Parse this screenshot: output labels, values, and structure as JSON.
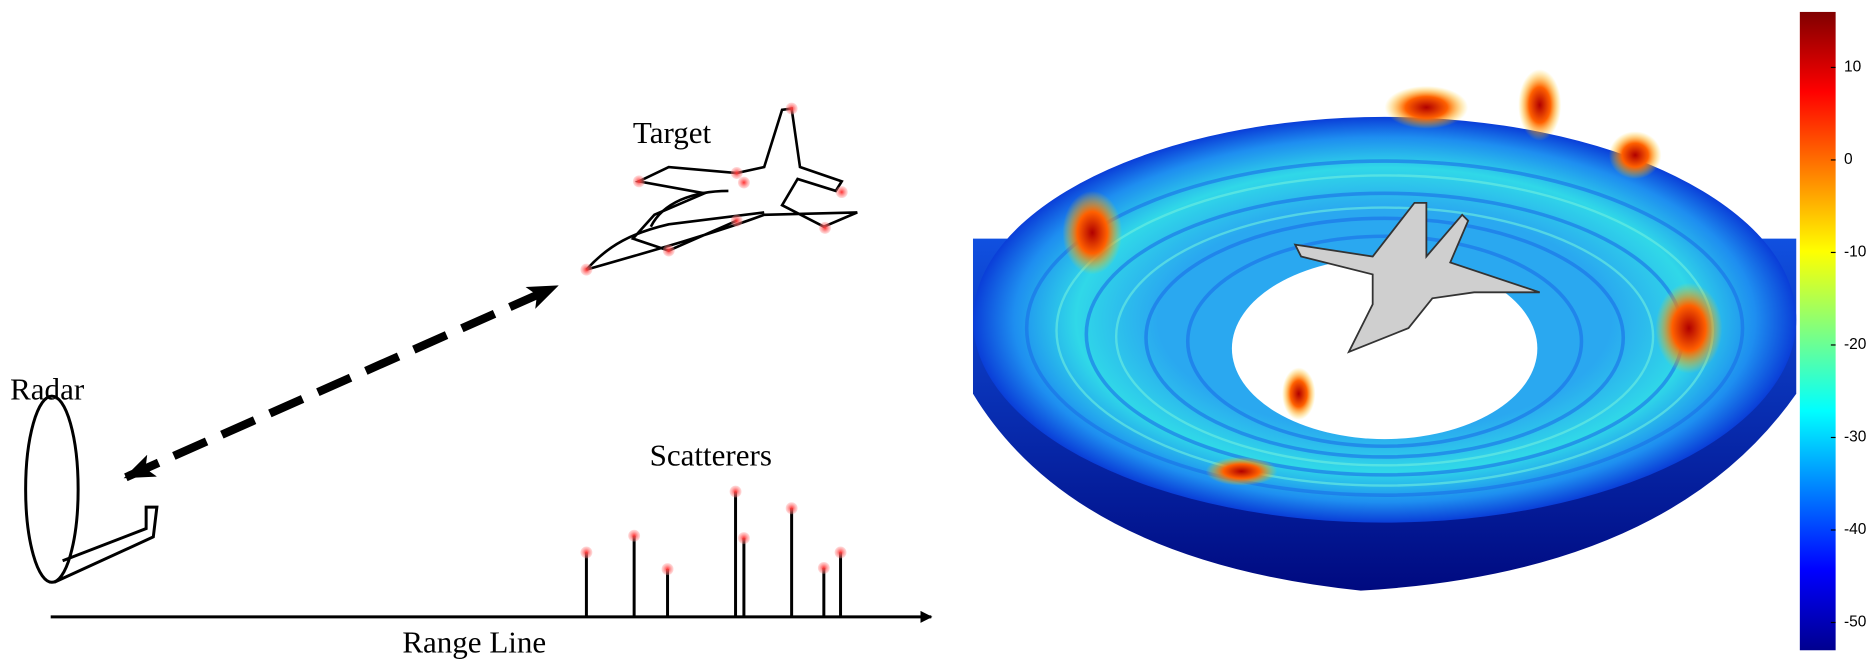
{
  "diagram": {
    "labels": {
      "radar": "Radar",
      "target": "Target",
      "scatterers": "Scatterers",
      "range_line": "Range Line"
    }
  },
  "colorbar": {
    "lim": [
      -53,
      16
    ],
    "ticks": [
      10,
      0,
      -10,
      -20,
      -30,
      -40,
      -50
    ]
  }
}
